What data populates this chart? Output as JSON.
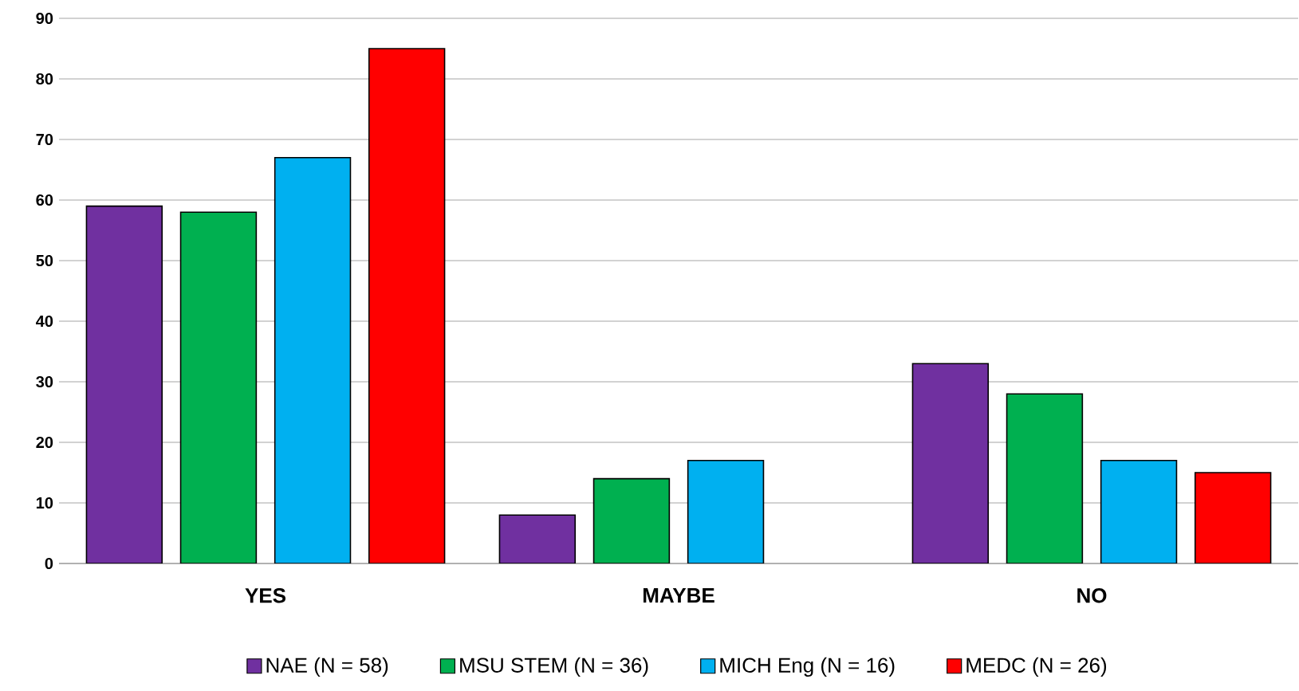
{
  "chart_data": {
    "type": "bar",
    "categories": [
      "YES",
      "MAYBE",
      "NO"
    ],
    "series": [
      {
        "name": "NAE (N = 58)",
        "color": "#7030a0",
        "values": [
          59,
          8,
          33
        ]
      },
      {
        "name": "MSU STEM (N = 36)",
        "color": "#00b050",
        "values": [
          58,
          14,
          28
        ]
      },
      {
        "name": "MICH Eng (N = 16)",
        "color": "#00b0f0",
        "values": [
          67,
          17,
          17
        ]
      },
      {
        "name": "MEDC (N = 26)",
        "color": "#ff0000",
        "values": [
          85,
          null,
          15
        ]
      }
    ],
    "ylim": [
      0,
      90
    ],
    "yticks": [
      0,
      10,
      20,
      30,
      40,
      50,
      60,
      70,
      80,
      90
    ],
    "grid": "y",
    "legend": "bottom"
  }
}
